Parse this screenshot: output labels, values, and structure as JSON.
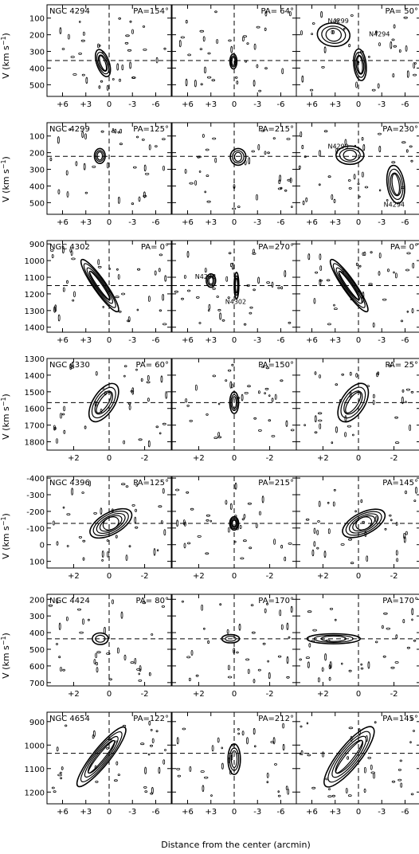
{
  "figure": {
    "ylabel_pre": "V (km s",
    "ylabel_sup": "−1",
    "ylabel_post": ")",
    "xlabel": "Distance from the center (arcmin)"
  },
  "chart_data": [
    {
      "type": "contour",
      "galaxy": "NGC 4294",
      "y_ticks": [
        "100",
        "200",
        "300",
        "400",
        "500"
      ],
      "ylim": [
        20,
        570
      ],
      "x_ticks": [
        "+6",
        "+3",
        "0",
        "-3",
        "-6"
      ],
      "xlim": [
        8,
        -8
      ],
      "systemic_velocity": 355,
      "panels": [
        {
          "pa": "PA=154°",
          "labels": [],
          "features": [
            {
              "x": 0.8,
              "v": 370,
              "wx": 1.6,
              "wv": 170,
              "tilt": -0.35,
              "levels": 4
            }
          ]
        },
        {
          "pa": "PA= 64°",
          "labels": [],
          "features": [
            {
              "x": 0.1,
              "v": 360,
              "wx": 0.9,
              "wv": 90,
              "tilt": 0,
              "levels": 3
            }
          ]
        },
        {
          "pa": "PA= 50°",
          "labels": [
            {
              "text": "N4299",
              "x": 2.6,
              "v": 130
            },
            {
              "text": "N4294",
              "x": -2.7,
              "v": 210
            }
          ],
          "features": [
            {
              "x": 3.2,
              "v": 200,
              "wx": 4.2,
              "wv": 140,
              "tilt": 0.1,
              "levels": 3
            },
            {
              "x": -0.2,
              "v": 380,
              "wx": 1.6,
              "wv": 190,
              "tilt": -0.1,
              "levels": 4
            }
          ]
        }
      ]
    },
    {
      "type": "contour",
      "galaxy": "NGC 4299",
      "y_ticks": [
        "100",
        "200",
        "300",
        "400",
        "500"
      ],
      "ylim": [
        20,
        570
      ],
      "x_ticks": [
        "+6",
        "+3",
        "0",
        "-3",
        "-6"
      ],
      "xlim": [
        8,
        -8
      ],
      "systemic_velocity": 222,
      "panels": [
        {
          "pa": "PA=125°",
          "labels": [],
          "features": [
            {
              "x": 1.2,
              "v": 220,
              "wx": 1.4,
              "wv": 90,
              "tilt": 0,
              "levels": 3
            }
          ]
        },
        {
          "pa": "PA=215°",
          "labels": [],
          "features": [
            {
              "x": -0.5,
              "v": 225,
              "wx": 2.0,
              "wv": 100,
              "tilt": 0,
              "levels": 3
            }
          ]
        },
        {
          "pa": "PA=230°",
          "labels": [
            {
              "text": "N4299",
              "x": 2.6,
              "v": 175
            },
            {
              "text": "N4294",
              "x": -4.6,
              "v": 525
            }
          ],
          "features": [
            {
              "x": 1.1,
              "v": 215,
              "wx": 3.6,
              "wv": 110,
              "tilt": 0,
              "levels": 3
            },
            {
              "x": -4.8,
              "v": 390,
              "wx": 2.2,
              "wv": 230,
              "tilt": -0.15,
              "levels": 4
            }
          ]
        }
      ]
    },
    {
      "type": "contour",
      "galaxy": "NGC 4302",
      "y_ticks": [
        "900",
        "1000",
        "1100",
        "1200",
        "1300",
        "1400"
      ],
      "ylim": [
        880,
        1430
      ],
      "x_ticks": [
        "+6",
        "+3",
        "0",
        "-3",
        "-6"
      ],
      "xlim": [
        8,
        -8
      ],
      "systemic_velocity": 1150,
      "panels": [
        {
          "pa": "PA=  0°",
          "labels": [],
          "features": [
            {
              "x": 1.2,
              "v": 1150,
              "wx": 1.6,
              "wv": 380,
              "tilt": -0.7,
              "levels": 5
            }
          ]
        },
        {
          "pa": "PA=270°",
          "labels": [
            {
              "text": "N4298",
              "x": 3.7,
              "v": 1110
            },
            {
              "text": "N4302",
              "x": -0.2,
              "v": 1260
            }
          ],
          "features": [
            {
              "x": 3.0,
              "v": 1120,
              "wx": 1.2,
              "wv": 80,
              "tilt": 0,
              "levels": 3
            },
            {
              "x": -0.3,
              "v": 1150,
              "wx": 0.6,
              "wv": 160,
              "tilt": 0,
              "levels": 3
            }
          ]
        },
        {
          "pa": "PA= 0°",
          "labels": [],
          "features": [
            {
              "x": 1.2,
              "v": 1150,
              "wx": 1.6,
              "wv": 380,
              "tilt": -0.7,
              "levels": 5
            }
          ]
        }
      ]
    },
    {
      "type": "contour",
      "galaxy": "NGC 4330",
      "y_ticks": [
        "1300",
        "1400",
        "1500",
        "1600",
        "1700",
        "1800"
      ],
      "ylim": [
        1300,
        1850
      ],
      "x_ticks": [
        "+2",
        "0",
        "-2"
      ],
      "xlim": [
        3.5,
        -3.5
      ],
      "systemic_velocity": 1565,
      "panels": [
        {
          "pa": "PA= 60°",
          "labels": [],
          "features": [
            {
              "x": 0.3,
              "v": 1565,
              "wx": 1.2,
              "wv": 260,
              "tilt": 0.65,
              "levels": 4
            }
          ]
        },
        {
          "pa": "PA=150°",
          "labels": [],
          "features": [
            {
              "x": 0.0,
              "v": 1565,
              "wx": 0.5,
              "wv": 130,
              "tilt": 0,
              "levels": 3
            }
          ]
        },
        {
          "pa": "PA= 25°",
          "labels": [],
          "features": [
            {
              "x": 0.3,
              "v": 1565,
              "wx": 1.3,
              "wv": 260,
              "tilt": 0.65,
              "levels": 4
            }
          ]
        }
      ]
    },
    {
      "type": "contour",
      "galaxy": "NGC 4396",
      "y_ticks": [
        "-400",
        "-300",
        "-200",
        "-100",
        "0",
        "100"
      ],
      "ylim": [
        -410,
        140
      ],
      "x_ticks": [
        "+2",
        "0",
        "-2"
      ],
      "xlim": [
        3.5,
        -3.5
      ],
      "systemic_velocity": -128,
      "panels": [
        {
          "pa": "PA=125°",
          "labels": [],
          "features": [
            {
              "x": -0.1,
              "v": -128,
              "wx": 2.6,
              "wv": 130,
              "tilt": -0.55,
              "levels": 5
            }
          ]
        },
        {
          "pa": "PA=215°",
          "labels": [],
          "features": [
            {
              "x": 0.0,
              "v": -128,
              "wx": 0.5,
              "wv": 80,
              "tilt": 0,
              "levels": 4
            }
          ]
        },
        {
          "pa": "PA=145°",
          "labels": [],
          "features": [
            {
              "x": -0.3,
              "v": -128,
              "wx": 2.6,
              "wv": 130,
              "tilt": -0.5,
              "levels": 5
            }
          ]
        }
      ]
    },
    {
      "type": "contour",
      "galaxy": "NGC 4424",
      "y_ticks": [
        "200",
        "300",
        "400",
        "500",
        "600",
        "700"
      ],
      "ylim": [
        170,
        720
      ],
      "x_ticks": [
        "+2",
        "0",
        "-2"
      ],
      "xlim": [
        3.5,
        -3.5
      ],
      "systemic_velocity": 437,
      "panels": [
        {
          "pa": "PA= 80°",
          "labels": [],
          "features": [
            {
              "x": 0.5,
              "v": 437,
              "wx": 0.9,
              "wv": 70,
              "tilt": 0,
              "levels": 2
            }
          ]
        },
        {
          "pa": "PA=170°",
          "labels": [],
          "features": [
            {
              "x": 0.2,
              "v": 437,
              "wx": 1.0,
              "wv": 50,
              "tilt": 0,
              "levels": 2
            }
          ]
        },
        {
          "pa": "PA=170°",
          "labels": [],
          "features": [
            {
              "x": 1.4,
              "v": 437,
              "wx": 3.0,
              "wv": 60,
              "tilt": 0,
              "levels": 3
            }
          ]
        }
      ]
    },
    {
      "type": "contour",
      "galaxy": "NGC 4654",
      "y_ticks": [
        "900",
        "1000",
        "1100",
        "1200"
      ],
      "ylim": [
        860,
        1250
      ],
      "x_ticks": [
        "+6",
        "+3",
        "0",
        "-3",
        "-6"
      ],
      "xlim": [
        8,
        -8
      ],
      "systemic_velocity": 1035,
      "panels": [
        {
          "pa": "PA=122°",
          "labels": [],
          "features": [
            {
              "x": 1.0,
              "v": 1050,
              "wx": 2.2,
              "wv": 320,
              "tilt": 0.8,
              "levels": 5
            }
          ]
        },
        {
          "pa": "PA=212°",
          "labels": [],
          "features": [
            {
              "x": 0.0,
              "v": 1060,
              "wx": 1.6,
              "wv": 130,
              "tilt": 0,
              "levels": 3
            }
          ]
        },
        {
          "pa": "PA=145°",
          "labels": [],
          "features": [
            {
              "x": 1.2,
              "v": 1050,
              "wx": 2.8,
              "wv": 320,
              "tilt": 0.8,
              "levels": 5
            }
          ]
        }
      ]
    }
  ]
}
